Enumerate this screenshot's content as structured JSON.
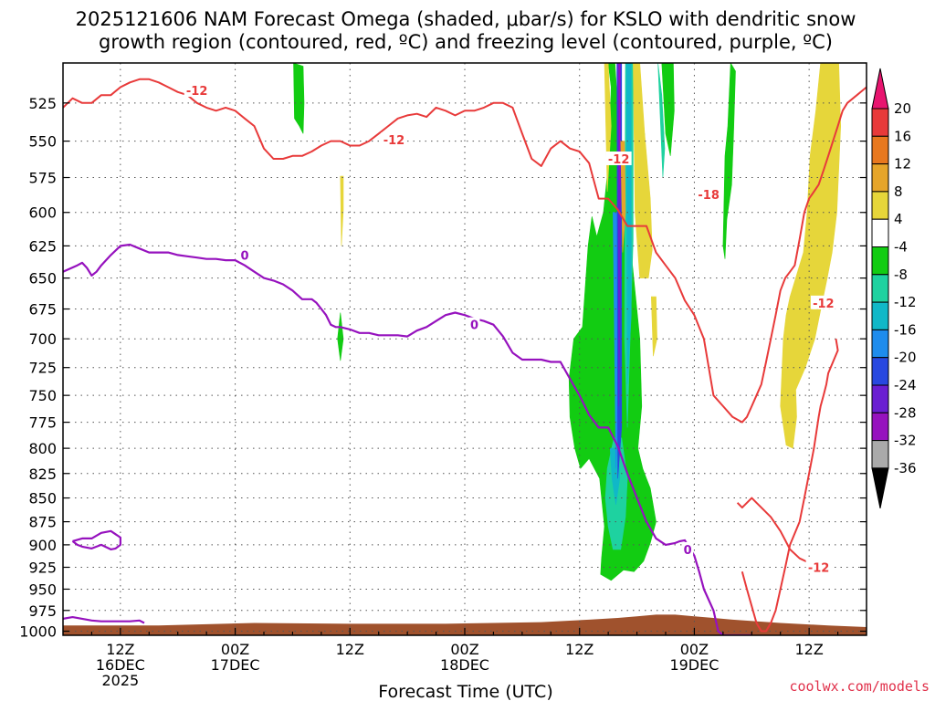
{
  "title": {
    "line1": "2025121606 NAM Forecast Omega (shaded, μbar/s) for KSLO with dendritic snow",
    "line2": "growth region (contoured, red, ºC) and freezing level (contoured, purple, ºC)"
  },
  "credit": "coolwx.com/models",
  "chart_data": {
    "type": "heatmap",
    "title": "2025121606 NAM Forecast Omega (shaded, μbar/s) for KSLO with dendritic snow growth region (contoured, red, ºC) and freezing level (contoured, purple, ºC)",
    "xlabel": "Forecast Time (UTC)",
    "ylabel": "",
    "x_ticks": [
      {
        "hour": 6,
        "label": [
          "12Z",
          "16DEC",
          "2025"
        ]
      },
      {
        "hour": 18,
        "label": [
          "00Z",
          "17DEC"
        ]
      },
      {
        "hour": 30,
        "label": [
          "12Z"
        ]
      },
      {
        "hour": 42,
        "label": [
          "00Z",
          "18DEC"
        ]
      },
      {
        "hour": 54,
        "label": [
          "12Z"
        ]
      },
      {
        "hour": 66,
        "label": [
          "00Z",
          "19DEC"
        ]
      },
      {
        "hour": 78,
        "label": [
          "12Z"
        ]
      }
    ],
    "xlim": [
      0,
      84
    ],
    "y_levels": [
      525,
      550,
      575,
      600,
      625,
      650,
      675,
      700,
      725,
      750,
      775,
      800,
      825,
      850,
      875,
      900,
      925,
      950,
      975,
      1000
    ],
    "ylim": [
      500,
      1005
    ],
    "y_scale": "log-pressure",
    "grid": true,
    "colorbar": {
      "labels": [
        "20",
        "16",
        "12",
        "8",
        "4",
        "-4",
        "-8",
        "-12",
        "-16",
        "-20",
        "-24",
        "-28",
        "-32",
        "-36"
      ],
      "bins": [
        {
          "lo": 20,
          "hi": 24,
          "color": "#e8156f"
        },
        {
          "lo": 16,
          "hi": 20,
          "color": "#e83a3a"
        },
        {
          "lo": 12,
          "hi": 16,
          "color": "#e8781e"
        },
        {
          "lo": 8,
          "hi": 12,
          "color": "#e6a52a"
        },
        {
          "lo": 4,
          "hi": 8,
          "color": "#e6d63a"
        },
        {
          "lo": -4,
          "hi": 4,
          "color": "#ffffff"
        },
        {
          "lo": -8,
          "hi": -4,
          "color": "#12cc12"
        },
        {
          "lo": -12,
          "hi": -8,
          "color": "#1ed2a0"
        },
        {
          "lo": -16,
          "hi": -12,
          "color": "#10b8c8"
        },
        {
          "lo": -20,
          "hi": -16,
          "color": "#1e8ced"
        },
        {
          "lo": -24,
          "hi": -20,
          "color": "#2848e0"
        },
        {
          "lo": -28,
          "hi": -24,
          "color": "#6a1ed2"
        },
        {
          "lo": -32,
          "hi": -28,
          "color": "#9612be"
        },
        {
          "lo": -36,
          "hi": -32,
          "color": "#aaaaaa"
        },
        {
          "lo": -40,
          "hi": -36,
          "color": "#000000"
        }
      ]
    },
    "omega_regions": [
      {
        "value": -6,
        "x": [
          57.0,
          57.3,
          57.1,
          56.5,
          55.8,
          55.3,
          54.9,
          54.3,
          53.4,
          52.9,
          53.0,
          53.5,
          54.1,
          55.0,
          56.1,
          56.6,
          56.3,
          56.2,
          57.3,
          58.6,
          59.7,
          60.7,
          61.4,
          62.0,
          61.4,
          61.0,
          60.6,
          60.1,
          60.5,
          60.3,
          59.4,
          58.3,
          57.7
        ],
        "y": [
          500,
          515,
          560,
          600,
          618,
          603,
          625,
          690,
          700,
          735,
          770,
          800,
          820,
          810,
          830,
          880,
          915,
          933,
          940,
          928,
          930,
          918,
          898,
          875,
          840,
          830,
          820,
          800,
          760,
          700,
          630,
          560,
          500
        ]
      },
      {
        "value": -6,
        "x": [
          24.1,
          25.1,
          25.2,
          25.1,
          24.7,
          24.2,
          24.1
        ],
        "y": [
          500,
          502,
          525,
          545,
          540,
          535,
          500
        ]
      },
      {
        "value": -6,
        "x": [
          29.0,
          29.3,
          29.0,
          28.7,
          29.0
        ],
        "y": [
          678,
          700,
          719,
          700,
          678
        ]
      },
      {
        "value": -6,
        "x": [
          62.6,
          63.8,
          63.9,
          63.5,
          63.0,
          62.6
        ],
        "y": [
          500,
          500,
          530,
          560,
          545,
          500
        ]
      },
      {
        "value": -6,
        "x": [
          69.8,
          70.3,
          70.1,
          69.9,
          69.4,
          69.2,
          69.0,
          69.2,
          69.5,
          69.8
        ],
        "y": [
          500,
          505,
          545,
          580,
          605,
          635,
          625,
          560,
          540,
          500
        ]
      },
      {
        "value": -10,
        "x": [
          62.2,
          62.6,
          62.9,
          62.7,
          62.2
        ],
        "y": [
          500,
          520,
          555,
          575,
          500
        ]
      },
      {
        "value": -10,
        "x": [
          57.6,
          58.4,
          59.0,
          58.8,
          58.3,
          57.5,
          57.0,
          56.7,
          56.9,
          57.6
        ],
        "y": [
          790,
          790,
          830,
          870,
          905,
          905,
          880,
          850,
          820,
          790
        ]
      },
      {
        "value": -14,
        "x": [
          57.2,
          58.1,
          58.2,
          57.8,
          57.4,
          57.2
        ],
        "y": [
          800,
          800,
          830,
          857,
          830,
          800
        ]
      },
      {
        "value": -10,
        "x": [
          58.8,
          59.6,
          59.6,
          59.0,
          58.7,
          58.8
        ],
        "y": [
          500,
          500,
          620,
          780,
          700,
          500
        ]
      },
      {
        "value": -10,
        "x": [
          60.2,
          60.8,
          60.8,
          60.3,
          60.2
        ],
        "y": [
          545,
          545,
          620,
          630,
          545
        ]
      },
      {
        "value": -14,
        "x": [
          58.9,
          59.4,
          59.4,
          59.0,
          58.9
        ],
        "y": [
          500,
          500,
          680,
          740,
          500
        ]
      },
      {
        "value": -18,
        "x": [
          57.5,
          58.3,
          58.3,
          57.8,
          57.5
        ],
        "y": [
          600,
          600,
          720,
          820,
          600
        ]
      },
      {
        "value": -22,
        "x": [
          57.9,
          58.4,
          58.4,
          58.0,
          57.9
        ],
        "y": [
          500,
          500,
          780,
          830,
          500
        ]
      },
      {
        "value": -26,
        "x": [
          58.0,
          58.3,
          58.3,
          58.1,
          58.0
        ],
        "y": [
          500,
          500,
          650,
          760,
          500
        ]
      },
      {
        "value": -30,
        "x": [
          58.1,
          58.2,
          58.2,
          58.1
        ],
        "y": [
          500,
          500,
          580,
          500
        ]
      },
      {
        "value": 6,
        "x": [
          56.6,
          57.0,
          57.3,
          56.9,
          56.6
        ],
        "y": [
          500,
          500,
          540,
          585,
          500
        ]
      },
      {
        "value": 6,
        "x": [
          59.6,
          60.3,
          60.8,
          61.4,
          61.6,
          61.2,
          60.3,
          59.8,
          59.6
        ],
        "y": [
          500,
          500,
          545,
          590,
          628,
          650,
          650,
          600,
          500
        ]
      },
      {
        "value": 6,
        "x": [
          61.5,
          62.0,
          62.1,
          61.7,
          61.5
        ],
        "y": [
          665,
          665,
          700,
          715,
          665
        ]
      },
      {
        "value": 6,
        "x": [
          29.0,
          29.3,
          29.3,
          29.1,
          29.0
        ],
        "y": [
          574,
          574,
          598,
          625,
          574
        ]
      },
      {
        "value": 6,
        "x": [
          79.2,
          81.1,
          81.3,
          80.9,
          80.4,
          79.9,
          79.3,
          78.6,
          77.6,
          76.6,
          76.7,
          76.3,
          75.6,
          75.0,
          75.3,
          75.6,
          76.0,
          77.4,
          77.8,
          78.1,
          78.7,
          79.2
        ],
        "y": [
          500,
          500,
          540,
          600,
          630,
          650,
          672,
          700,
          725,
          745,
          770,
          800,
          797,
          760,
          700,
          680,
          665,
          630,
          600,
          560,
          530,
          500
        ]
      },
      {
        "value": 10,
        "x": [
          58.3,
          58.7,
          58.8,
          58.5,
          58.3
        ],
        "y": [
          550,
          550,
          600,
          630,
          550
        ]
      }
    ],
    "freezing_level_0C": [
      {
        "x": [
          0.0,
          1.5,
          2.0,
          2.5,
          3.0,
          3.5,
          4.0,
          5.0,
          6.0,
          7.0,
          8.0,
          9.0,
          10.0,
          11.0,
          12.0,
          13.0,
          14.0,
          15.0,
          16.0,
          17.0,
          18.0,
          19.0,
          20.0,
          21.0,
          22.0,
          23.0,
          24.0,
          25.0,
          26.0,
          26.5,
          27.0,
          27.5,
          28.0,
          28.5,
          29.0,
          30.0,
          31.0,
          32.0,
          33.0,
          34.0,
          35.0,
          36.0,
          37.0,
          38.0,
          39.0,
          40.0,
          41.0,
          42.0,
          43.0,
          44.0,
          45.0,
          46.0,
          47.0,
          48.0,
          49.0,
          50.0,
          51.0,
          52.0,
          53.0,
          54.0,
          55.0,
          56.0,
          57.0,
          58.0,
          59.0,
          60.0,
          61.0,
          62.0,
          63.0,
          64.0,
          64.5,
          65.0,
          66.0,
          66.5,
          67.0,
          68.0,
          68.5,
          69.0,
          70.0,
          71.0,
          71.5,
          72.0
        ],
        "y": [
          645,
          640,
          638,
          642,
          648,
          645,
          640,
          632,
          625,
          624,
          627,
          630,
          630,
          630,
          632,
          633,
          634,
          635,
          635,
          636,
          636,
          640,
          645,
          650,
          652,
          655,
          660,
          667,
          667,
          670,
          675,
          680,
          688,
          690,
          690,
          692,
          695,
          695,
          697,
          697,
          697,
          698,
          693,
          690,
          685,
          680,
          678,
          680,
          683,
          685,
          688,
          698,
          712,
          718,
          718,
          718,
          720,
          720,
          735,
          750,
          768,
          780,
          780,
          798,
          825,
          850,
          875,
          893,
          900,
          898,
          896,
          895,
          912,
          930,
          950,
          975,
          1000,
          1005,
          1005,
          1005,
          1005,
          1005
        ]
      },
      {
        "x": [
          1.0,
          2.0,
          3.0,
          4.0,
          5.0,
          6.0,
          6.0,
          5.5,
          5.0,
          4.0,
          3.0,
          2.0,
          1.5,
          1.0
        ],
        "y": [
          896,
          893,
          893,
          887,
          885,
          892,
          900,
          904,
          905,
          900,
          904,
          902,
          900,
          896
        ]
      },
      {
        "x": [
          0.0,
          1.0,
          2.0,
          3.0,
          4.0,
          5.0,
          6.0,
          7.0,
          8.0,
          8.5
        ],
        "y": [
          985,
          983,
          985,
          987,
          988,
          988,
          988,
          988,
          987,
          990
        ]
      }
    ],
    "snow_growth_contours": [
      {
        "x": [
          0.0,
          1.0,
          2.0,
          3.0,
          4.0,
          5.0,
          6.0,
          7.0,
          8.0,
          9.0,
          10.0,
          11.0,
          12.0,
          13.0,
          14.0,
          15.0,
          16.0,
          17.0,
          18.0,
          19.0,
          20.0,
          21.0,
          22.0,
          23.0,
          24.0,
          25.0,
          26.0,
          27.0,
          28.0,
          29.0,
          30.0,
          31.0,
          32.0,
          33.0,
          34.0,
          35.0,
          36.0,
          37.0,
          38.0,
          39.0,
          40.0,
          41.0,
          42.0,
          43.0,
          44.0,
          45.0,
          46.0,
          47.0,
          48.0,
          49.0,
          50.0,
          51.0,
          52.0,
          53.0,
          54.0,
          55.0,
          56.0,
          57.0,
          58.0,
          59.0,
          60.0,
          61.0,
          62.0,
          63.0,
          64.0,
          65.0,
          66.0,
          67.0,
          68.0,
          69.0,
          70.0,
          71.0,
          71.5,
          72.0,
          72.5,
          73.0,
          73.5,
          74.0,
          74.5,
          75.0,
          75.5,
          76.0,
          76.5,
          77.0,
          77.5,
          78.0,
          78.5,
          79.0,
          79.5,
          80.0,
          80.5,
          81.0,
          81.5,
          82.0,
          83.0,
          84.0
        ],
        "y": [
          528,
          522,
          525,
          525,
          520,
          520,
          515,
          512,
          510,
          510,
          512,
          515,
          518,
          520,
          525,
          528,
          530,
          528,
          530,
          535,
          540,
          555,
          562,
          562,
          560,
          560,
          557,
          553,
          550,
          550,
          553,
          553,
          550,
          545,
          540,
          535,
          533,
          532,
          534,
          528,
          530,
          533,
          530,
          530,
          528,
          525,
          525,
          528,
          545,
          562,
          567,
          555,
          550,
          555,
          557,
          565,
          590,
          590,
          598,
          610,
          610,
          610,
          630,
          640,
          650,
          668,
          680,
          700,
          750,
          760,
          770,
          775,
          770,
          760,
          750,
          740,
          720,
          700,
          680,
          660,
          650,
          645,
          640,
          620,
          600,
          590,
          585,
          580,
          570,
          560,
          550,
          540,
          530,
          525,
          520,
          515
        ]
      },
      {
        "x": [
          80.8,
          81.0,
          80.5,
          80.0,
          79.8,
          79.5,
          79.2,
          79.0,
          78.5,
          78.0,
          77.5,
          77.0,
          76.0,
          75.5,
          75.0,
          74.5,
          74.0,
          73.5,
          73.0,
          72.5,
          72.0,
          71.5,
          71.0
        ],
        "y": [
          700,
          710,
          720,
          730,
          740,
          750,
          760,
          770,
          800,
          825,
          850,
          875,
          900,
          925,
          950,
          975,
          990,
          1000,
          1000,
          990,
          970,
          950,
          930
        ]
      },
      {
        "x": [
          70.5,
          71.0,
          72.0,
          72.5,
          73.0,
          74.0,
          75.0,
          75.5,
          76.0,
          77.0,
          78.0,
          79.0,
          80.0
        ],
        "y": [
          855,
          860,
          850,
          855,
          860,
          870,
          885,
          895,
          905,
          915,
          920,
          925,
          920
        ]
      }
    ],
    "terrain": {
      "x": [
        0.0,
        10.0,
        20.0,
        30.0,
        40.0,
        45.0,
        50.0,
        55.0,
        58.0,
        60.0,
        62.0,
        64.0,
        66.0,
        68.0,
        70.0,
        75.0,
        80.0,
        84.0
      ],
      "surface_hpa": [
        993,
        993,
        990,
        991,
        991,
        990,
        989,
        986,
        984,
        982,
        980,
        980,
        982,
        984,
        986,
        990,
        993,
        995
      ]
    },
    "contour_labels": [
      {
        "text": "-12",
        "x": 14.0,
        "y": 517,
        "color": "#e83a3a"
      },
      {
        "text": "-12",
        "x": 34.6,
        "y": 549,
        "color": "#e83a3a"
      },
      {
        "text": "-12",
        "x": 58.1,
        "y": 562,
        "color": "#e83a3a"
      },
      {
        "text": "-18",
        "x": 67.5,
        "y": 587,
        "color": "#e83a3a"
      },
      {
        "text": "-12",
        "x": 79.5,
        "y": 670,
        "color": "#e83a3a"
      },
      {
        "text": "-12",
        "x": 79.0,
        "y": 925,
        "color": "#e83a3a"
      },
      {
        "text": "0",
        "x": 19.0,
        "y": 632,
        "color": "#9612be"
      },
      {
        "text": "0",
        "x": 43.0,
        "y": 688,
        "color": "#9612be"
      },
      {
        "text": "0",
        "x": 65.3,
        "y": 905,
        "color": "#9612be"
      }
    ],
    "colors": {
      "freezing": "#9612be",
      "dendritic": "#e83a3a",
      "terrain": "#a0522d",
      "grid": "#555555"
    }
  }
}
